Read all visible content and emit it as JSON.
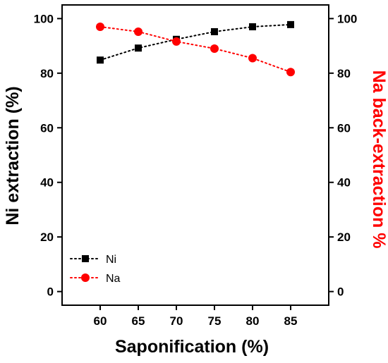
{
  "chart_data": {
    "type": "line",
    "x": [
      60,
      65,
      70,
      75,
      80,
      85
    ],
    "xlim": [
      55,
      90
    ],
    "xticks": [
      60,
      65,
      70,
      75,
      80,
      85
    ],
    "xlabel": "Saponification (%)",
    "ylabel_left": "Ni extraction (%)",
    "ylabel_right": "Na back-extraction %",
    "ylim_left": [
      -5,
      105
    ],
    "ylim_right": [
      -5,
      105
    ],
    "yticks": [
      0,
      20,
      40,
      60,
      80,
      100
    ],
    "grid": false,
    "legend_position": "bottom-left",
    "series": [
      {
        "name": "Ni",
        "axis": "left",
        "marker": "square",
        "line_style": "dotted",
        "color": "#000000",
        "values": [
          84.8,
          89.2,
          92.4,
          95.2,
          97.0,
          97.8
        ]
      },
      {
        "name": "Na",
        "axis": "right",
        "marker": "circle",
        "line_style": "dotted",
        "color": "#ff0000",
        "values": [
          97.0,
          95.2,
          91.6,
          89.0,
          85.5,
          80.4
        ]
      }
    ]
  },
  "colors": {
    "left_axis_title": "#000000",
    "right_axis_title": "#ff0000",
    "axes": "#000000"
  }
}
